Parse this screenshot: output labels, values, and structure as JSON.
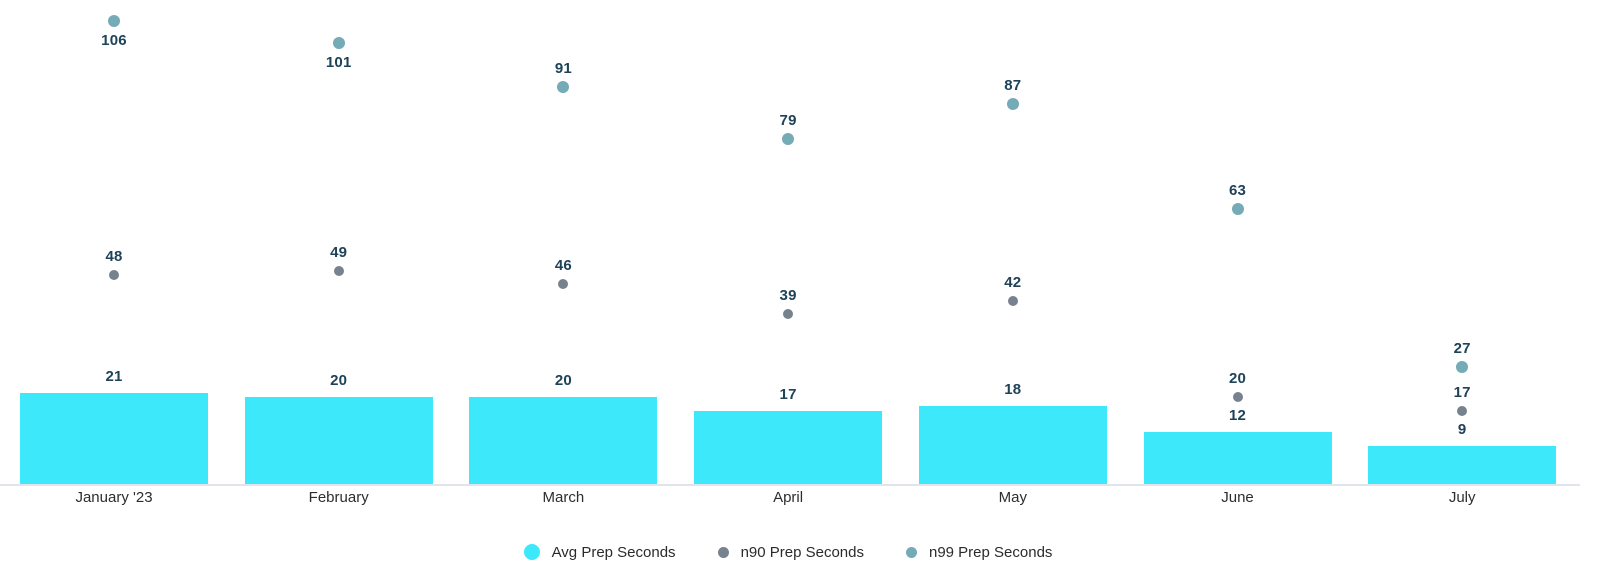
{
  "chart_data": {
    "type": "combo",
    "title": "",
    "xlabel": "",
    "ylabel": "",
    "categories": [
      "January '23",
      "February",
      "March",
      "April",
      "May",
      "June",
      "July"
    ],
    "series": [
      {
        "name": "Avg Prep Seconds",
        "type": "bar",
        "color": "#3DE8FB",
        "values": [
          21,
          20,
          20,
          17,
          18,
          12,
          9
        ]
      },
      {
        "name": "n90 Prep Seconds",
        "type": "scatter",
        "color": "#76828E",
        "values": [
          48,
          49,
          46,
          39,
          42,
          20,
          17
        ]
      },
      {
        "name": "n99 Prep Seconds",
        "type": "scatter",
        "color": "#74ABB6",
        "values": [
          106,
          101,
          91,
          79,
          87,
          63,
          27
        ]
      }
    ],
    "ylim": [
      0,
      111
    ],
    "grid": false,
    "value_labels": true,
    "legend_position": "bottom",
    "colors": {
      "background": "#FFFFFF",
      "value_label_text": "#1E4258",
      "axis_label_text": "#2D2D2D",
      "legend_text": "#2B2B2B",
      "axis_line": "#E1E4EC"
    }
  }
}
